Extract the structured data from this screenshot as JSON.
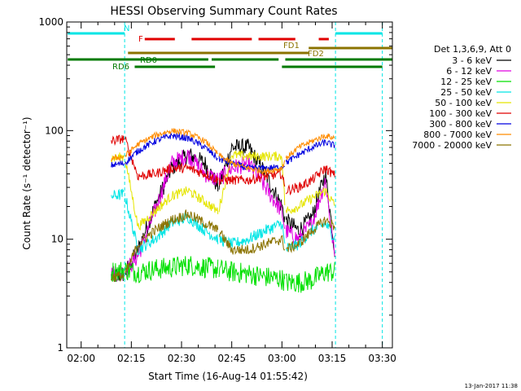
{
  "chart_data": {
    "type": "line",
    "title": "HESSI Observing Summary Count Rates",
    "xlabel": "Start Time (16-Aug-14 01:55:42)",
    "ylabel": "Count Rate (s⁻¹ detector⁻¹)",
    "yscale": "log",
    "xlim": [
      "01:55:42",
      "03:33:00"
    ],
    "ylim": [
      1,
      1000
    ],
    "x_ticks": [
      "02:00",
      "02:15",
      "02:30",
      "02:45",
      "03:00",
      "03:15",
      "03:30"
    ],
    "y_ticks": [
      "1",
      "10",
      "100",
      "1000"
    ],
    "timestamp": "13-Jan-2017 11:38",
    "legend": {
      "title": "Det 1,3,6,9, Att 0",
      "position": "right"
    },
    "flags": [
      {
        "label": "N",
        "color": "#00e5e5",
        "segments": [
          [
            "01:56",
            "02:13"
          ],
          [
            "03:16",
            "03:30"
          ]
        ]
      },
      {
        "label": "F",
        "color": "#e00000",
        "segments": [
          [
            "02:19",
            "02:28"
          ],
          [
            "02:33",
            "02:51"
          ],
          [
            "02:53",
            "03:04"
          ],
          [
            "03:11",
            "03:14"
          ]
        ]
      },
      {
        "label": "FD1",
        "color": "#8b7300",
        "segments": [
          [
            "02:14",
            "03:08"
          ]
        ]
      },
      {
        "label": "FD2",
        "color": "#8b7300",
        "segments": [
          [
            "03:08",
            "03:33"
          ]
        ]
      },
      {
        "label": "RD0",
        "color": "#007a00",
        "segments": [
          [
            "01:56",
            "02:38"
          ],
          [
            "02:39",
            "02:59"
          ],
          [
            "03:01",
            "03:33"
          ]
        ]
      },
      {
        "label": "RD6",
        "color": "#007a00",
        "segments": [
          [
            "02:16",
            "02:40"
          ],
          [
            "03:00",
            "03:30"
          ]
        ]
      }
    ],
    "gaps": [
      "02:13",
      "02:41",
      "03:01",
      "03:16"
    ],
    "gap_lines": [
      "02:13",
      "03:16",
      "03:30"
    ],
    "series": [
      {
        "name": "3 - 6 keV",
        "color": "#000000",
        "x": [
          "02:09",
          "02:13",
          "02:17",
          "02:22",
          "02:27",
          "02:32",
          "02:37",
          "02:41",
          "02:45",
          "02:50",
          "02:55",
          "03:00",
          "03:01",
          "03:05",
          "03:09",
          "03:13",
          "03:16"
        ],
        "values": [
          4.5,
          4.8,
          8,
          20,
          45,
          60,
          50,
          30,
          70,
          70,
          40,
          20,
          15,
          12,
          16,
          40,
          7
        ]
      },
      {
        "name": "6 - 12 keV",
        "color": "#e000e0",
        "x": [
          "02:09",
          "02:13",
          "02:17",
          "02:22",
          "02:27",
          "02:32",
          "02:37",
          "02:41",
          "02:45",
          "02:50",
          "02:55",
          "03:00",
          "03:01",
          "03:05",
          "03:09",
          "03:13",
          "03:16"
        ],
        "values": [
          4.8,
          5,
          7,
          18,
          50,
          60,
          40,
          35,
          45,
          50,
          30,
          18,
          12,
          10,
          14,
          35,
          6
        ]
      },
      {
        "name": "12 - 25 keV",
        "color": "#00e000",
        "x": [
          "02:09",
          "02:13",
          "02:17",
          "02:22",
          "02:27",
          "02:32",
          "02:37",
          "02:41",
          "02:45",
          "02:50",
          "02:55",
          "03:00",
          "03:01",
          "03:05",
          "03:09",
          "03:13",
          "03:16"
        ],
        "values": [
          5,
          5.2,
          5,
          5.3,
          5.5,
          5.8,
          5.5,
          5.3,
          5,
          4.8,
          4.5,
          4.3,
          4,
          4,
          4.2,
          5,
          5
        ]
      },
      {
        "name": "25 - 50 keV",
        "color": "#00e5e5",
        "x": [
          "02:09",
          "02:13",
          "02:17",
          "02:22",
          "02:27",
          "02:32",
          "02:37",
          "02:41",
          "02:45",
          "02:50",
          "02:55",
          "03:00",
          "03:01",
          "03:05",
          "03:09",
          "03:13",
          "03:16"
        ],
        "values": [
          25,
          26,
          8,
          10,
          14,
          16,
          12,
          10,
          9,
          10,
          12,
          14,
          8,
          9,
          12,
          14,
          10
        ]
      },
      {
        "name": "50 - 100 keV",
        "color": "#e5e500",
        "x": [
          "02:09",
          "02:13",
          "02:17",
          "02:22",
          "02:27",
          "02:32",
          "02:37",
          "02:41",
          "02:45",
          "02:50",
          "02:55",
          "03:00",
          "03:01",
          "03:05",
          "03:09",
          "03:13",
          "03:16"
        ],
        "values": [
          55,
          58,
          13,
          18,
          25,
          28,
          22,
          18,
          60,
          58,
          58,
          58,
          18,
          20,
          24,
          28,
          20
        ]
      },
      {
        "name": "100 - 300 keV",
        "color": "#e00000",
        "x": [
          "02:09",
          "02:13",
          "02:17",
          "02:22",
          "02:27",
          "02:32",
          "02:37",
          "02:41",
          "02:45",
          "02:50",
          "02:55",
          "03:00",
          "03:01",
          "03:05",
          "03:09",
          "03:13",
          "03:16"
        ],
        "values": [
          80,
          85,
          38,
          40,
          45,
          45,
          40,
          35,
          35,
          35,
          38,
          40,
          28,
          30,
          35,
          45,
          38
        ]
      },
      {
        "name": "300 - 800 keV",
        "color": "#0000e0",
        "x": [
          "02:09",
          "02:13",
          "02:17",
          "02:22",
          "02:27",
          "02:32",
          "02:37",
          "02:41",
          "02:45",
          "02:50",
          "02:55",
          "03:00",
          "03:01",
          "03:05",
          "03:09",
          "03:13",
          "03:16"
        ],
        "values": [
          48,
          50,
          65,
          80,
          90,
          85,
          70,
          55,
          50,
          45,
          45,
          46,
          50,
          60,
          70,
          78,
          72
        ]
      },
      {
        "name": "800 - 7000 keV",
        "color": "#ff8c00",
        "x": [
          "02:09",
          "02:13",
          "02:17",
          "02:22",
          "02:27",
          "02:32",
          "02:37",
          "02:41",
          "02:45",
          "02:50",
          "02:55",
          "03:00",
          "03:01",
          "03:05",
          "03:09",
          "03:13",
          "03:16"
        ],
        "values": [
          55,
          58,
          75,
          90,
          100,
          95,
          80,
          60,
          50,
          45,
          42,
          45,
          55,
          70,
          80,
          90,
          85
        ]
      },
      {
        "name": "7000 - 20000 keV",
        "color": "#8b7300",
        "x": [
          "02:09",
          "02:13",
          "02:17",
          "02:22",
          "02:27",
          "02:32",
          "02:37",
          "02:41",
          "02:45",
          "02:50",
          "02:55",
          "03:00",
          "03:01",
          "03:05",
          "03:09",
          "03:13",
          "03:16"
        ],
        "values": [
          4.5,
          4.6,
          9,
          12,
          15,
          17,
          14,
          12,
          8,
          8,
          9,
          10,
          8,
          9,
          12,
          15,
          13
        ]
      }
    ]
  }
}
